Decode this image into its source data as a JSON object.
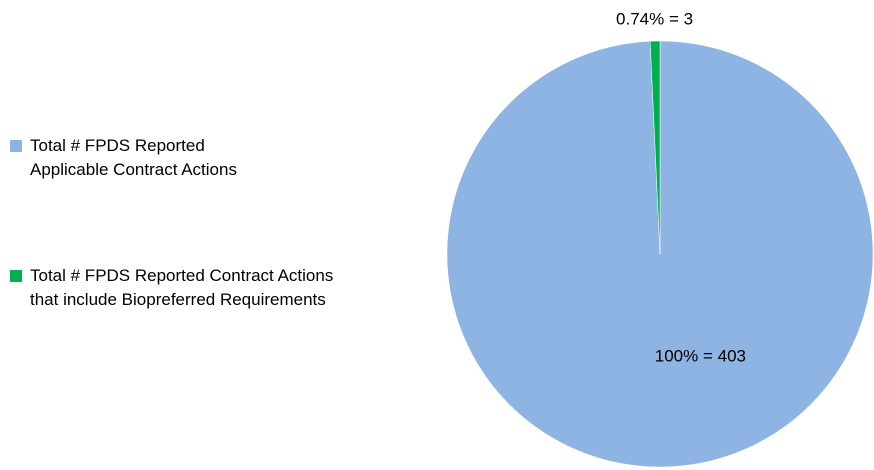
{
  "chart_data": {
    "type": "pie",
    "categories": [
      "Total # FPDS Reported Applicable Contract Actions",
      "Total # FPDS Reported Contract Actions that include Biopreferred Requirements"
    ],
    "values": [
      403,
      3
    ],
    "value_labels": [
      "100% = 403",
      "0.74% = 3"
    ],
    "colors": [
      "#8eb4e3",
      "#00b050"
    ],
    "legend": "left"
  }
}
